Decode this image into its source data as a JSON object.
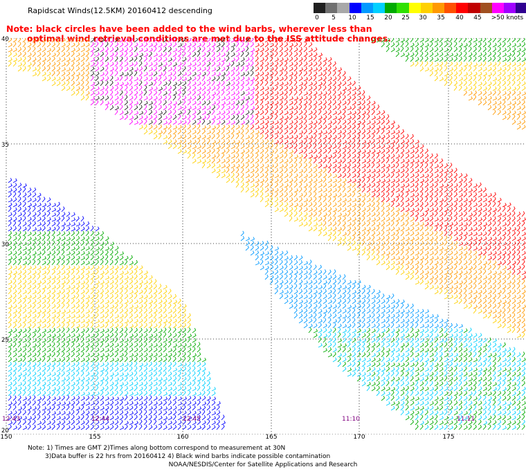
{
  "title": "Rapidscat Winds(12.5KM) 20160412 descending",
  "note_line1": "Note: black circles have been added to the wind barbs, wherever less than",
  "note_line2": "optimal wind retrieval conditions are met due to the ISS attitude changes.",
  "scale": {
    "colors": [
      "#202020",
      "#707070",
      "#a8a8a8",
      "#0000ff",
      "#0099ff",
      "#00d0ff",
      "#00aa00",
      "#30e000",
      "#ffff00",
      "#ffd000",
      "#ff9900",
      "#ff5000",
      "#ff0000",
      "#c00000",
      "#a05020",
      "#ff00ff",
      "#a000ff",
      "#300090"
    ],
    "labels": [
      "0",
      "5",
      "10",
      "15",
      "20",
      "25",
      "30",
      "35",
      "40",
      "45",
      ">50 knots"
    ]
  },
  "lat_labels": [
    "40",
    "35",
    "30",
    "25",
    "20"
  ],
  "lon_labels": [
    "150",
    "155",
    "160",
    "165",
    "170",
    "175"
  ],
  "times": [
    "12:43",
    "12:44",
    "12:45",
    "11:10",
    "11:11"
  ],
  "footnote_line1": "Note: 1) Times are GMT 2)Times along bottom correspond to measurement at 30N",
  "footnote_line2": "3)Data buffer is 22 hrs from 20160412 4) Black wind barbs indicate possible contamination",
  "credit": "NOAA/NESDIS/Center for Satellite Applications and Research"
}
